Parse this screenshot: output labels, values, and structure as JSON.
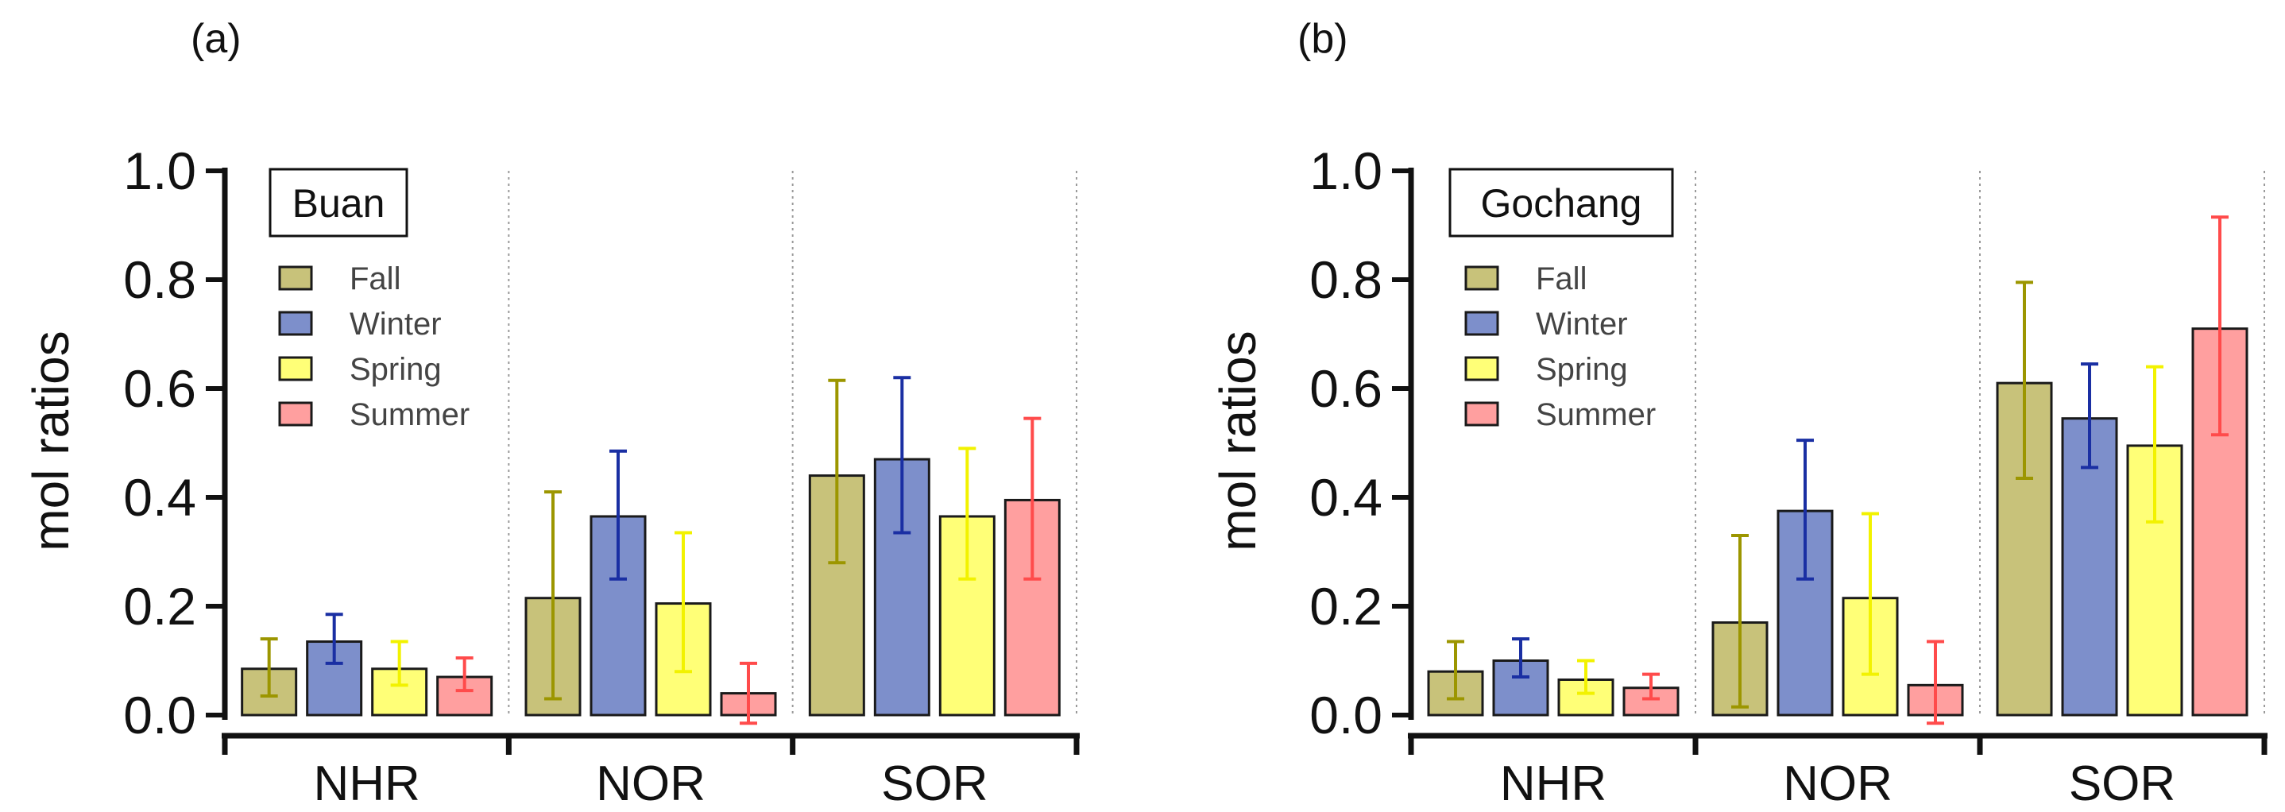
{
  "series_styles": [
    {
      "name": "Fall",
      "fill": "#c8c27a",
      "error_color": "#9c9600"
    },
    {
      "name": "Winter",
      "fill": "#7d8fcb",
      "error_color": "#1a2fa3"
    },
    {
      "name": "Spring",
      "fill": "#ffff77",
      "error_color": "#f2f200"
    },
    {
      "name": "Summer",
      "fill": "#ff9f9f",
      "error_color": "#ff4b4b"
    }
  ],
  "chart_data": [
    {
      "type": "bar",
      "panel_label": "(a)",
      "station": "Buan",
      "ylabel": "mol ratios",
      "ylim": [
        0.0,
        1.0
      ],
      "yticks": [
        "0.0",
        "0.2",
        "0.4",
        "0.6",
        "0.8",
        "1.0"
      ],
      "categories": [
        "NHR",
        "NOR",
        "SOR"
      ],
      "series": [
        {
          "name": "Fall",
          "values": [
            0.085,
            0.215,
            0.44
          ],
          "errors": [
            [
              0.035,
              0.14
            ],
            [
              0.03,
              0.41
            ],
            [
              0.28,
              0.615
            ]
          ]
        },
        {
          "name": "Winter",
          "values": [
            0.135,
            0.365,
            0.47
          ],
          "errors": [
            [
              0.095,
              0.185
            ],
            [
              0.25,
              0.485
            ],
            [
              0.335,
              0.62
            ]
          ]
        },
        {
          "name": "Spring",
          "values": [
            0.085,
            0.205,
            0.365
          ],
          "errors": [
            [
              0.055,
              0.135
            ],
            [
              0.08,
              0.335
            ],
            [
              0.25,
              0.49
            ]
          ]
        },
        {
          "name": "Summer",
          "values": [
            0.07,
            0.04,
            0.395
          ],
          "errors": [
            [
              0.045,
              0.105
            ],
            [
              -0.015,
              0.095
            ],
            [
              0.25,
              0.545
            ]
          ]
        }
      ]
    },
    {
      "type": "bar",
      "panel_label": "(b)",
      "station": "Gochang",
      "ylabel": "mol ratios",
      "ylim": [
        0.0,
        1.0
      ],
      "yticks": [
        "0.0",
        "0.2",
        "0.4",
        "0.6",
        "0.8",
        "1.0"
      ],
      "categories": [
        "NHR",
        "NOR",
        "SOR"
      ],
      "series": [
        {
          "name": "Fall",
          "values": [
            0.08,
            0.17,
            0.61
          ],
          "errors": [
            [
              0.03,
              0.135
            ],
            [
              0.015,
              0.33
            ],
            [
              0.435,
              0.795
            ]
          ]
        },
        {
          "name": "Winter",
          "values": [
            0.1,
            0.375,
            0.545
          ],
          "errors": [
            [
              0.07,
              0.14
            ],
            [
              0.25,
              0.505
            ],
            [
              0.455,
              0.645
            ]
          ]
        },
        {
          "name": "Spring",
          "values": [
            0.065,
            0.215,
            0.495
          ],
          "errors": [
            [
              0.04,
              0.1
            ],
            [
              0.075,
              0.37
            ],
            [
              0.355,
              0.64
            ]
          ]
        },
        {
          "name": "Summer",
          "values": [
            0.05,
            0.055,
            0.71
          ],
          "errors": [
            [
              0.03,
              0.075
            ],
            [
              -0.015,
              0.135
            ],
            [
              0.515,
              0.915
            ]
          ]
        }
      ]
    }
  ]
}
